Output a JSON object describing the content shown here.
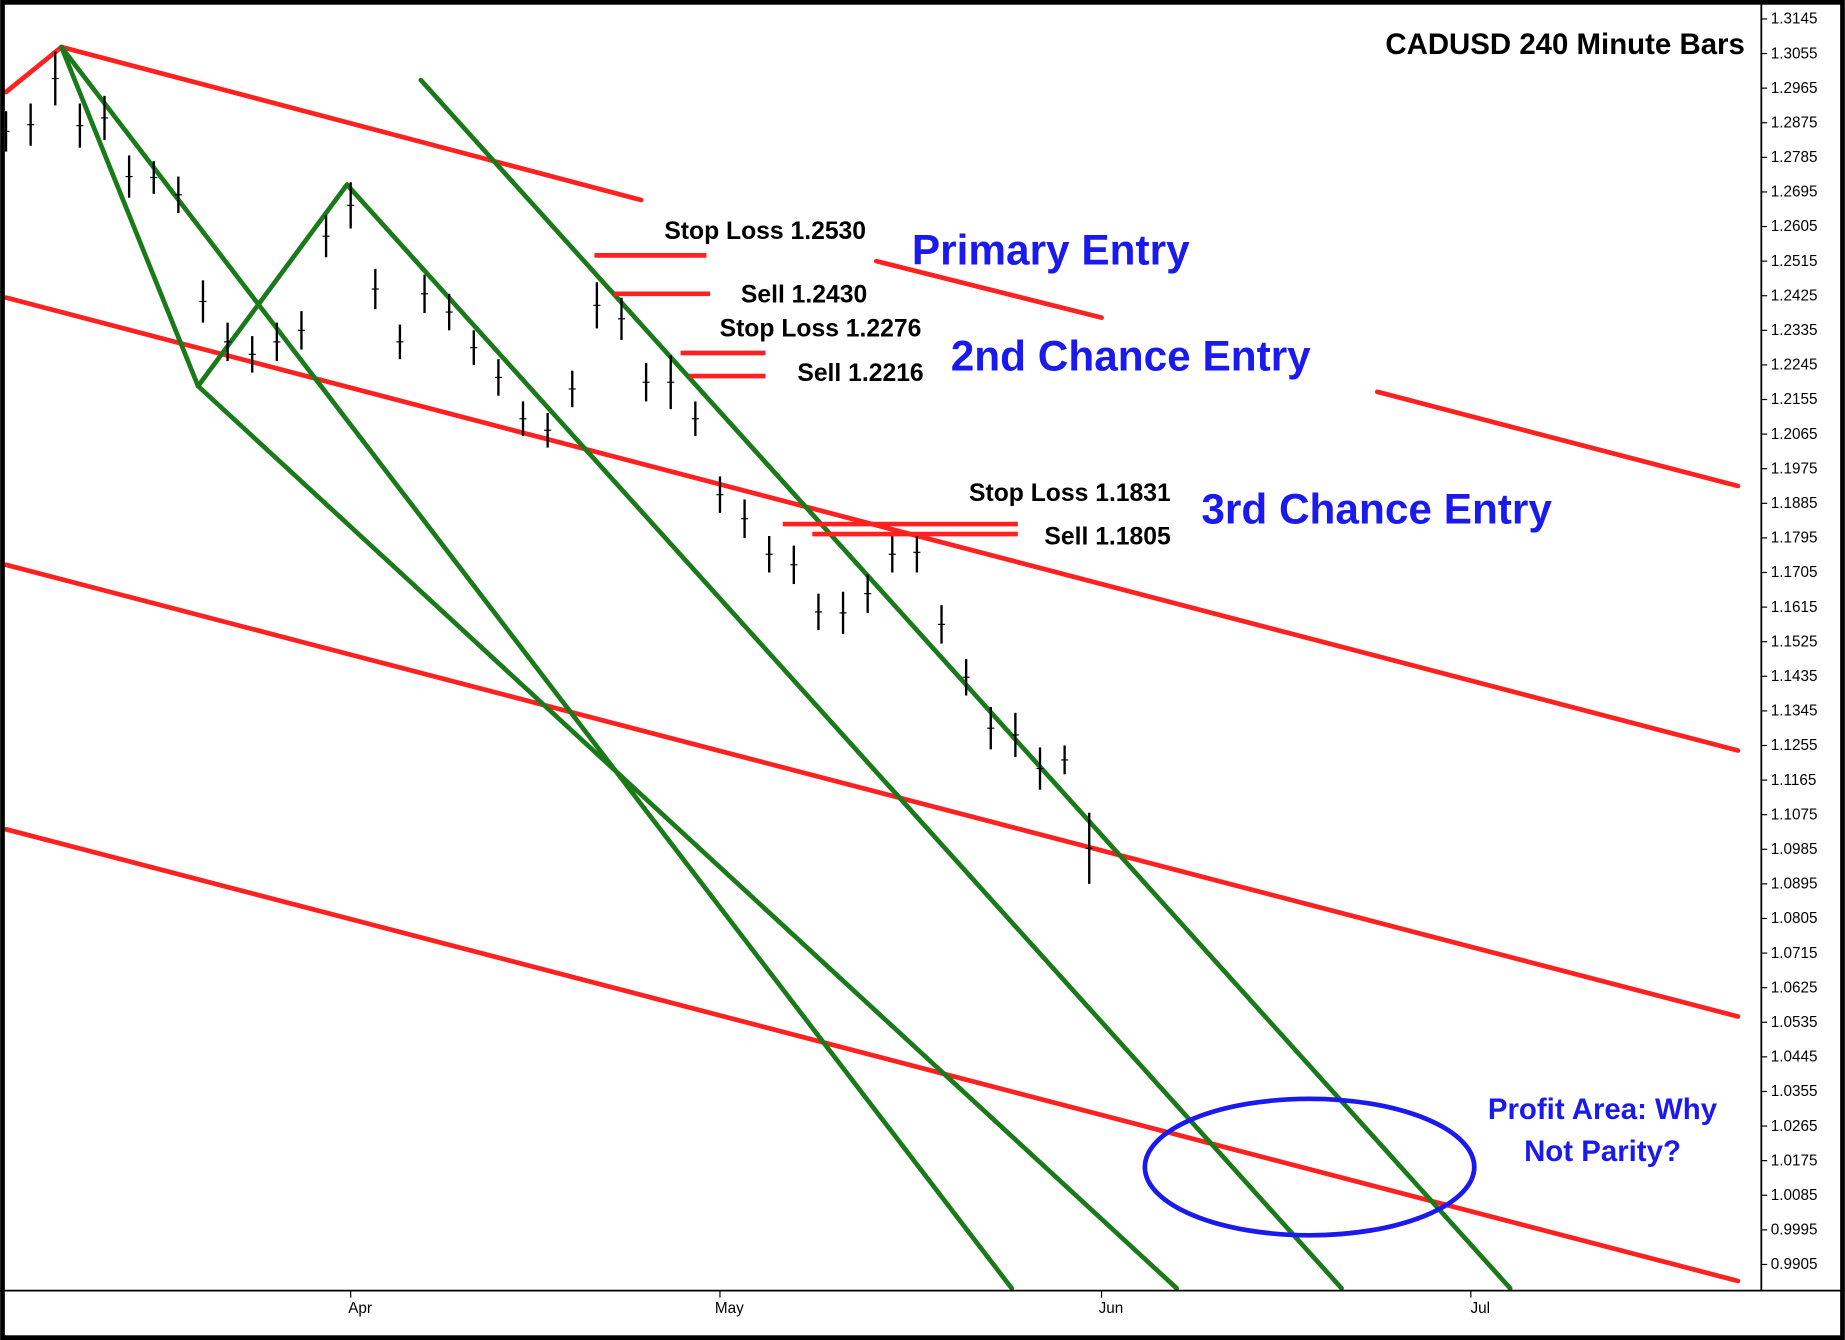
{
  "chart_data": {
    "type": "ohlc",
    "title": "CADUSD 240 Minute Bars",
    "x": [
      0,
      2,
      4,
      6,
      8,
      10,
      12,
      14,
      16,
      18,
      20,
      22,
      24,
      26,
      28,
      30,
      32,
      34,
      36,
      38,
      40,
      42,
      44,
      46,
      48,
      50,
      52,
      54,
      56,
      58,
      60,
      62,
      64,
      66,
      68,
      70,
      72,
      74,
      76,
      78,
      80,
      82,
      84,
      86,
      88
    ],
    "high": [
      1.2905,
      1.2925,
      1.306,
      1.2925,
      1.2945,
      1.279,
      1.2775,
      1.2735,
      1.2465,
      1.2355,
      1.232,
      1.2355,
      1.2385,
      1.2635,
      1.272,
      1.2495,
      1.235,
      1.248,
      1.243,
      1.2335,
      1.226,
      1.215,
      1.212,
      1.223,
      1.246,
      1.242,
      1.225,
      1.227,
      1.215,
      1.1955,
      1.1895,
      1.18,
      1.1775,
      1.165,
      1.1655,
      1.17,
      1.18,
      1.181,
      1.162,
      1.148,
      1.1355,
      1.134,
      1.125,
      1.1255,
      1.108
    ],
    "low": [
      1.28,
      1.2815,
      1.292,
      1.281,
      1.283,
      1.268,
      1.269,
      1.264,
      1.2355,
      1.2255,
      1.2225,
      1.2255,
      1.2285,
      1.2525,
      1.26,
      1.239,
      1.226,
      1.238,
      1.2335,
      1.2245,
      1.2165,
      1.206,
      1.203,
      1.2135,
      1.234,
      1.231,
      1.215,
      1.213,
      1.206,
      1.186,
      1.1795,
      1.1705,
      1.1675,
      1.1555,
      1.1545,
      1.16,
      1.1705,
      1.1705,
      1.152,
      1.1385,
      1.1245,
      1.1225,
      1.114,
      1.118,
      1.0895
    ],
    "bar_color": "#000000",
    "xlim": [
      0,
      142.6
    ],
    "xticks": [
      {
        "value": 28,
        "label": "Apr"
      },
      {
        "value": 58,
        "label": "May"
      },
      {
        "value": 89,
        "label": "Jun"
      },
      {
        "value": 119,
        "label": "Jul"
      }
    ],
    "ylim": [
      0.9837,
      1.3179
    ],
    "yticks": [
      0.9905,
      0.9995,
      1.0085,
      1.0175,
      1.0265,
      1.0355,
      1.0445,
      1.0535,
      1.0625,
      1.0715,
      1.0805,
      1.0895,
      1.0985,
      1.1075,
      1.1165,
      1.1255,
      1.1345,
      1.1435,
      1.1525,
      1.1615,
      1.1705,
      1.1795,
      1.1885,
      1.1975,
      1.2065,
      1.2155,
      1.2245,
      1.2335,
      1.2425,
      1.2515,
      1.2605,
      1.2695,
      1.2785,
      1.2875,
      1.2965,
      1.3055,
      1.3145
    ],
    "trend_lines": [
      {
        "color": "#ff2020",
        "x": [
          0,
          4.5
        ],
        "y": [
          1.2955,
          1.3072
        ]
      },
      {
        "color": "#ff2020",
        "x": [
          4.5,
          51.6
        ],
        "y": [
          1.3072,
          1.2674
        ]
      },
      {
        "color": "#ff2020",
        "x": [
          70.7,
          89
        ],
        "y": [
          1.2515,
          1.2368
        ]
      },
      {
        "color": "#ff2020",
        "x": [
          111.4,
          140.7
        ],
        "y": [
          1.2175,
          1.193
        ]
      },
      {
        "color": "#ff2020",
        "x": [
          0,
          140.7
        ],
        "y": [
          1.242,
          1.1242
        ]
      },
      {
        "color": "#ff2020",
        "x": [
          0,
          140.7
        ],
        "y": [
          1.1725,
          1.055
        ]
      },
      {
        "color": "#ff2020",
        "x": [
          0,
          140.7
        ],
        "y": [
          1.1037,
          0.9862
        ]
      },
      {
        "color": "#1a7a1a",
        "x": [
          4.5,
          81.7
        ],
        "y": [
          1.3072,
          0.9843
        ]
      },
      {
        "color": "#1a7a1a",
        "x": [
          4.5,
          15.6
        ],
        "y": [
          1.3072,
          1.219
        ]
      },
      {
        "color": "#1a7a1a",
        "x": [
          15.6,
          27.7
        ],
        "y": [
          1.219,
          1.2714
        ]
      },
      {
        "color": "#1a7a1a",
        "x": [
          15.6,
          95.1
        ],
        "y": [
          1.219,
          0.9843
        ]
      },
      {
        "color": "#1a7a1a",
        "x": [
          27.7,
          108.5
        ],
        "y": [
          1.2714,
          0.9843
        ]
      },
      {
        "color": "#1a7a1a",
        "x": [
          33.7,
          122.2
        ],
        "y": [
          1.2986,
          0.9843
        ]
      }
    ],
    "levels": [
      {
        "label": "Stop Loss 1.2530",
        "value": 1.253,
        "x": [
          47.8,
          56.9
        ]
      },
      {
        "label": "Sell 1.2430",
        "value": 1.243,
        "x": [
          49.4,
          57.2
        ]
      },
      {
        "label": "Stop Loss 1.2276",
        "value": 1.2276,
        "x": [
          54.8,
          61.7
        ]
      },
      {
        "label": "Sell 1.2216",
        "value": 1.2216,
        "x": [
          55.5,
          61.7
        ]
      },
      {
        "label": "Stop Loss 1.1831",
        "value": 1.1831,
        "x": [
          63.1,
          82.2
        ]
      },
      {
        "label": "Sell 1.1805",
        "value": 1.1805,
        "x": [
          65.5,
          82.2
        ]
      }
    ],
    "level_color": "#ff2020",
    "annotations": [
      "Primary Entry",
      "2nd Chance Entry",
      "3rd Chance Entry"
    ],
    "profit_note": [
      "Profit Area: Why",
      "Not Parity?"
    ],
    "note_color": "#1a1aee"
  }
}
